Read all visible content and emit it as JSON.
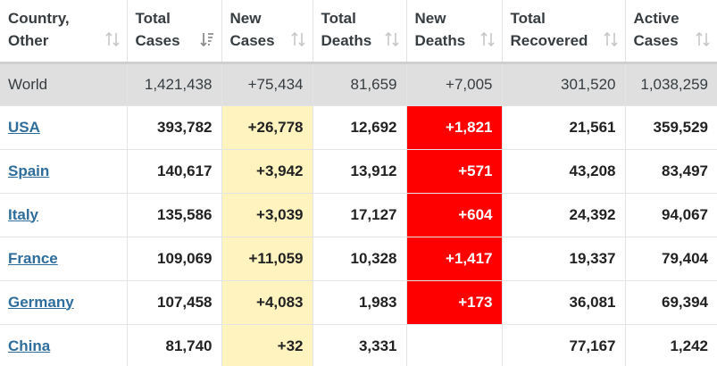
{
  "colors": {
    "header_text": "#363c40",
    "link": "#2f6e9c",
    "world_row_bg": "#dfdfdf",
    "new_cases_bg": "#fff3c0",
    "new_deaths_bg": "#ff0000",
    "new_deaths_text": "#ffffff"
  },
  "columns": [
    {
      "line1": "Country,",
      "line2": "Other",
      "sort_icon": "sort-icon",
      "active": false
    },
    {
      "line1": "Total",
      "line2": "Cases",
      "sort_icon": "sort-desc-icon",
      "active": true
    },
    {
      "line1": "New",
      "line2": "Cases",
      "sort_icon": "sort-icon",
      "active": false
    },
    {
      "line1": "Total",
      "line2": "Deaths",
      "sort_icon": "sort-icon",
      "active": false
    },
    {
      "line1": "New",
      "line2": "Deaths",
      "sort_icon": "sort-icon",
      "active": false
    },
    {
      "line1": "Total",
      "line2": "Recovered",
      "sort_icon": "sort-icon",
      "active": false
    },
    {
      "line1": "Active",
      "line2": "Cases",
      "sort_icon": "sort-icon",
      "active": false
    }
  ],
  "world": {
    "country": "World",
    "total_cases": "1,421,438",
    "new_cases": "+75,434",
    "total_deaths": "81,659",
    "new_deaths": "+7,005",
    "total_recovered": "301,520",
    "active_cases": "1,038,259"
  },
  "rows": [
    {
      "country": "USA",
      "total_cases": "393,782",
      "new_cases": "+26,778",
      "total_deaths": "12,692",
      "new_deaths": "+1,821",
      "total_recovered": "21,561",
      "active_cases": "359,529"
    },
    {
      "country": "Spain",
      "total_cases": "140,617",
      "new_cases": "+3,942",
      "total_deaths": "13,912",
      "new_deaths": "+571",
      "total_recovered": "43,208",
      "active_cases": "83,497"
    },
    {
      "country": "Italy",
      "total_cases": "135,586",
      "new_cases": "+3,039",
      "total_deaths": "17,127",
      "new_deaths": "+604",
      "total_recovered": "24,392",
      "active_cases": "94,067"
    },
    {
      "country": "France",
      "total_cases": "109,069",
      "new_cases": "+11,059",
      "total_deaths": "10,328",
      "new_deaths": "+1,417",
      "total_recovered": "19,337",
      "active_cases": "79,404"
    },
    {
      "country": "Germany",
      "total_cases": "107,458",
      "new_cases": "+4,083",
      "total_deaths": "1,983",
      "new_deaths": "+173",
      "total_recovered": "36,081",
      "active_cases": "69,394"
    },
    {
      "country": "China",
      "total_cases": "81,740",
      "new_cases": "+32",
      "total_deaths": "3,331",
      "new_deaths": "",
      "total_recovered": "77,167",
      "active_cases": "1,242"
    }
  ]
}
